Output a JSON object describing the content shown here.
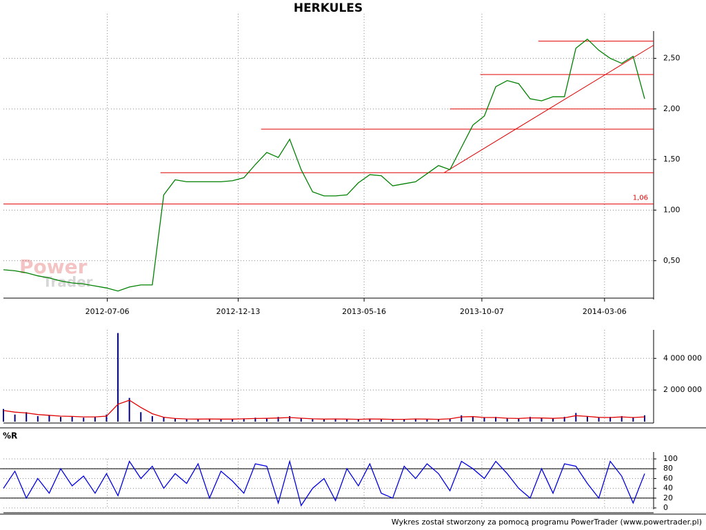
{
  "chart_data": {
    "type": "line",
    "title": "HERKULES",
    "x": [
      "2012-03-01",
      "2012-03-15",
      "2012-03-29",
      "2012-04-12",
      "2012-04-26",
      "2012-05-10",
      "2012-05-24",
      "2012-06-07",
      "2012-06-21",
      "2012-07-05",
      "2012-07-19",
      "2012-08-02",
      "2012-08-16",
      "2012-08-30",
      "2012-09-13",
      "2012-09-27",
      "2012-10-11",
      "2012-10-25",
      "2012-11-08",
      "2012-11-22",
      "2012-12-06",
      "2012-12-20",
      "2013-01-03",
      "2013-01-17",
      "2013-01-31",
      "2013-02-14",
      "2013-02-28",
      "2013-03-14",
      "2013-03-28",
      "2013-04-11",
      "2013-04-25",
      "2013-05-09",
      "2013-05-23",
      "2013-06-06",
      "2013-06-20",
      "2013-07-04",
      "2013-07-18",
      "2013-08-01",
      "2013-08-15",
      "2013-08-29",
      "2013-09-12",
      "2013-09-26",
      "2013-10-10",
      "2013-10-24",
      "2013-11-07",
      "2013-11-21",
      "2013-12-05",
      "2013-12-19",
      "2014-01-02",
      "2014-01-16",
      "2014-01-30",
      "2014-02-13",
      "2014-02-27",
      "2014-03-13",
      "2014-03-27",
      "2014-04-10",
      "2014-04-24"
    ],
    "xlim": [
      "2012-03-01",
      "2014-05-05"
    ],
    "xticks": [
      "2012-07-06",
      "2012-12-13",
      "2013-05-16",
      "2013-10-07",
      "2014-03-06"
    ],
    "ylim": [
      0.13,
      2.94
    ],
    "yticks": [
      {
        "value": 0.5,
        "label": "0,50"
      },
      {
        "value": 1,
        "label": "1,00"
      },
      {
        "value": 1.5,
        "label": "1,50"
      },
      {
        "value": 2,
        "label": "2,00"
      },
      {
        "value": 2.5,
        "label": "2,50"
      }
    ],
    "grid": true,
    "series": [
      {
        "color": "#008000",
        "values": [
          0.41,
          0.4,
          0.38,
          0.35,
          0.33,
          0.3,
          0.28,
          0.27,
          0.25,
          0.23,
          0.2,
          0.24,
          0.26,
          0.26,
          1.15,
          1.3,
          1.28,
          1.28,
          1.28,
          1.28,
          1.29,
          1.32,
          1.45,
          1.57,
          1.52,
          1.7,
          1.4,
          1.18,
          1.14,
          1.14,
          1.15,
          1.27,
          1.35,
          1.34,
          1.24,
          1.26,
          1.28,
          1.36,
          1.44,
          1.4,
          1.62,
          1.84,
          1.93,
          2.22,
          2.28,
          2.25,
          2.1,
          2.08,
          2.12,
          2.12,
          2.6,
          2.69,
          2.58,
          2.5,
          2.45,
          2.52,
          2.1
        ]
      }
    ],
    "hlines": [
      {
        "value": 1.06,
        "label": "1,06",
        "from": "2012-03-01",
        "color": "#e00000"
      },
      {
        "value": 1.37,
        "from": "2012-09-09",
        "color": "#e00000"
      },
      {
        "value": 1.8,
        "from": "2013-01-10",
        "color": "#e00000"
      },
      {
        "value": 2.0,
        "from": "2013-08-29",
        "color": "#e00000"
      },
      {
        "value": 2.34,
        "from": "2013-10-05",
        "color": "#e00000"
      },
      {
        "value": 2.67,
        "from": "2013-12-15",
        "color": "#e00000"
      }
    ],
    "trend": {
      "x": [
        "2013-08-22",
        "2014-05-05"
      ],
      "values": [
        1.37,
        2.63
      ],
      "color": "#e00000"
    },
    "watermark": [
      "Power",
      "Trader"
    ],
    "volume": {
      "type": "bar",
      "ylim": [
        0,
        5800000
      ],
      "yticks": [
        {
          "value": 2000000,
          "label": "2 000 000"
        },
        {
          "value": 4000000,
          "label": "4 000 000"
        }
      ],
      "series": [
        {
          "color": "#000080",
          "values": [
            800000,
            450000,
            600000,
            350000,
            400000,
            300000,
            350000,
            250000,
            300000,
            450000,
            5600000,
            1500000,
            600000,
            350000,
            300000,
            200000,
            150000,
            150000,
            200000,
            150000,
            150000,
            200000,
            250000,
            200000,
            300000,
            350000,
            200000,
            150000,
            150000,
            200000,
            150000,
            150000,
            200000,
            150000,
            150000,
            150000,
            200000,
            150000,
            150000,
            200000,
            400000,
            350000,
            250000,
            300000,
            200000,
            200000,
            300000,
            250000,
            200000,
            300000,
            550000,
            350000,
            250000,
            300000,
            350000,
            250000,
            400000
          ]
        },
        {
          "type": "line",
          "color": "#e00000",
          "values": [
            700000,
            600000,
            550000,
            450000,
            400000,
            350000,
            330000,
            300000,
            300000,
            350000,
            1100000,
            1350000,
            900000,
            500000,
            280000,
            200000,
            170000,
            160000,
            170000,
            160000,
            160000,
            180000,
            200000,
            210000,
            230000,
            260000,
            220000,
            180000,
            160000,
            170000,
            160000,
            150000,
            170000,
            160000,
            150000,
            150000,
            170000,
            160000,
            150000,
            180000,
            300000,
            320000,
            260000,
            260000,
            220000,
            200000,
            240000,
            230000,
            210000,
            240000,
            380000,
            330000,
            270000,
            260000,
            300000,
            260000,
            300000
          ]
        }
      ]
    },
    "indicator": {
      "type": "line",
      "label": "%R",
      "ylim": [
        0,
        100
      ],
      "yticks": [
        0,
        20,
        40,
        60,
        80,
        100
      ],
      "levels": [
        20,
        80
      ],
      "series": [
        {
          "color": "#0000e0",
          "values": [
            40,
            75,
            20,
            60,
            30,
            80,
            45,
            65,
            30,
            70,
            25,
            95,
            60,
            85,
            40,
            70,
            50,
            90,
            20,
            75,
            55,
            30,
            90,
            85,
            10,
            95,
            5,
            40,
            60,
            15,
            80,
            45,
            90,
            30,
            20,
            85,
            60,
            90,
            70,
            35,
            95,
            80,
            60,
            95,
            70,
            40,
            20,
            80,
            30,
            90,
            85,
            50,
            20,
            95,
            65,
            10,
            70
          ]
        }
      ]
    },
    "footer": "Wykres został stworzony za pomocą programu PowerTrader (www.powertrader.pl)"
  }
}
